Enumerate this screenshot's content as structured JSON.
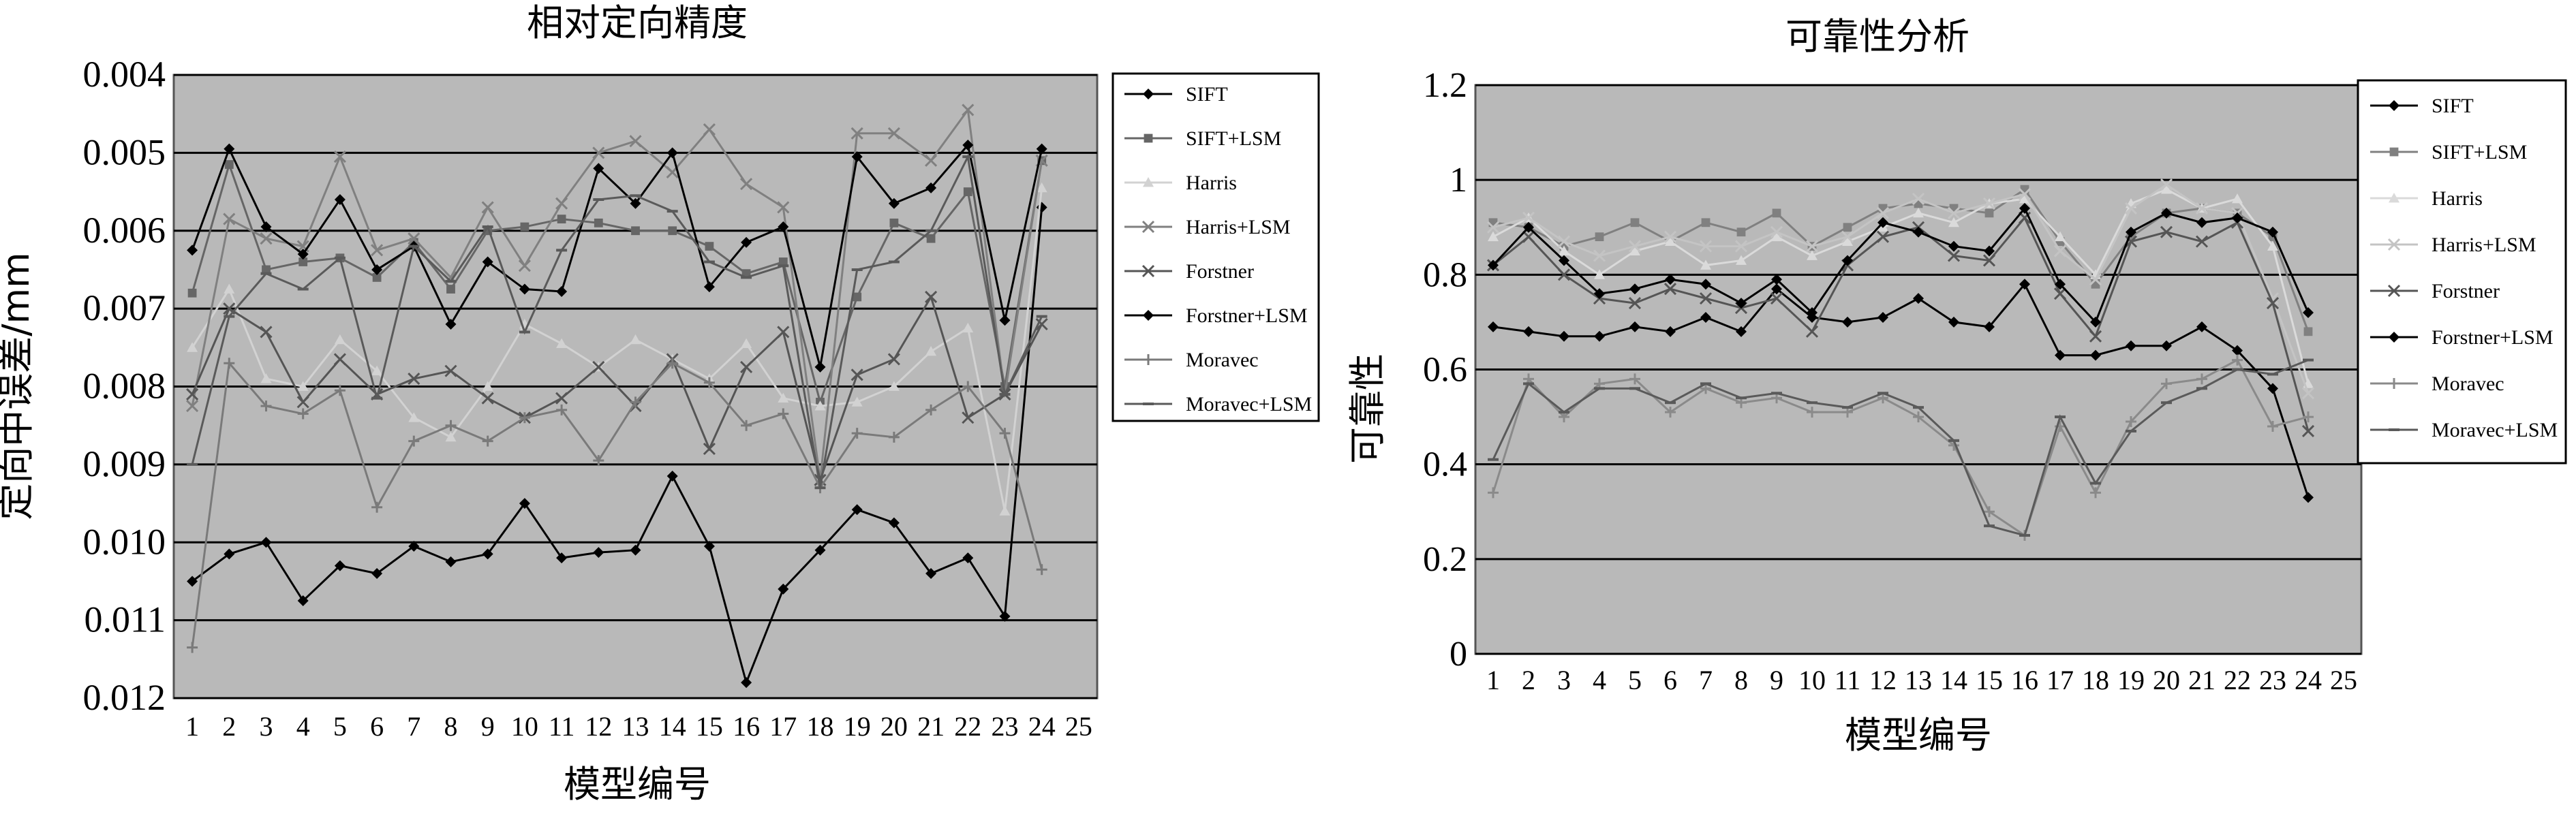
{
  "chart_data": [
    {
      "type": "line",
      "title": "相对定向精度",
      "xlabel": "模型编号",
      "ylabel": "定向中误差/mm",
      "x": [
        1,
        2,
        3,
        4,
        5,
        6,
        7,
        8,
        9,
        10,
        11,
        12,
        13,
        14,
        15,
        16,
        17,
        18,
        19,
        20,
        21,
        22,
        23,
        24
      ],
      "x_ticks": [
        "1",
        "2",
        "3",
        "4",
        "5",
        "6",
        "7",
        "8",
        "9",
        "10",
        "11",
        "12",
        "13",
        "14",
        "15",
        "16",
        "17",
        "18",
        "19",
        "20",
        "21",
        "22",
        "23",
        "24",
        "25"
      ],
      "xlim": [
        0.5,
        25.5
      ],
      "ylim": [
        0.004,
        0.012
      ],
      "y_inverted": true,
      "y_ticks": [
        "0.004",
        "0.005",
        "0.006",
        "0.007",
        "0.008",
        "0.009",
        "0.010",
        "0.011",
        "0.012"
      ],
      "grid": "horizontal",
      "legend_position": "right",
      "series": [
        {
          "name": "SIFT",
          "color": "#000000",
          "marker": "diamond",
          "values": [
            0.0105,
            0.01015,
            0.01,
            0.01075,
            0.0103,
            0.0104,
            0.01005,
            0.01025,
            0.01015,
            0.0095,
            0.0102,
            0.01013,
            0.0101,
            0.00915,
            0.01005,
            0.0118,
            0.0106,
            0.0101,
            0.00958,
            0.00975,
            0.0104,
            0.0102,
            0.01095,
            0.0057
          ]
        },
        {
          "name": "SIFT+LSM",
          "color": "#666666",
          "marker": "square",
          "values": [
            0.0068,
            0.00515,
            0.0065,
            0.0064,
            0.00635,
            0.0066,
            0.00615,
            0.00675,
            0.006,
            0.00595,
            0.00585,
            0.0059,
            0.006,
            0.006,
            0.0062,
            0.00655,
            0.0064,
            0.0082,
            0.00685,
            0.0059,
            0.0061,
            0.0055,
            0.008,
            0.0051
          ]
        },
        {
          "name": "Harris",
          "color": "#d2d2d2",
          "marker": "triangle",
          "values": [
            0.0075,
            0.00675,
            0.0079,
            0.008,
            0.0074,
            0.0078,
            0.0084,
            0.00865,
            0.008,
            0.0072,
            0.00745,
            0.00775,
            0.0074,
            0.00765,
            0.0079,
            0.00745,
            0.00815,
            0.00825,
            0.0082,
            0.008,
            0.00755,
            0.00725,
            0.0096,
            0.00545
          ]
        },
        {
          "name": "Harris+LSM",
          "color": "#808080",
          "marker": "x",
          "values": [
            0.00825,
            0.00585,
            0.0061,
            0.0062,
            0.00505,
            0.00625,
            0.0061,
            0.0066,
            0.0057,
            0.00645,
            0.00565,
            0.005,
            0.00485,
            0.00525,
            0.0047,
            0.0054,
            0.0057,
            0.0092,
            0.00475,
            0.00475,
            0.0051,
            0.00445,
            0.0081,
            0.0051
          ]
        },
        {
          "name": "Forstner",
          "color": "#555555",
          "marker": "x",
          "values": [
            0.0081,
            0.007,
            0.0073,
            0.0082,
            0.00765,
            0.0081,
            0.0079,
            0.0078,
            0.00815,
            0.0084,
            0.00815,
            0.00775,
            0.00825,
            0.00765,
            0.0088,
            0.00775,
            0.0073,
            0.0092,
            0.00785,
            0.00765,
            0.00685,
            0.0084,
            0.0081,
            0.0072
          ]
        },
        {
          "name": "Forstner+LSM",
          "color": "#000000",
          "marker": "diamond",
          "values": [
            0.00625,
            0.00495,
            0.00595,
            0.0063,
            0.0056,
            0.0065,
            0.0062,
            0.0072,
            0.0064,
            0.00675,
            0.00678,
            0.0052,
            0.00565,
            0.005,
            0.00672,
            0.00615,
            0.00595,
            0.00775,
            0.00505,
            0.00565,
            0.00545,
            0.0049,
            0.00715,
            0.00495
          ]
        },
        {
          "name": "Moravec",
          "color": "#7a7a7a",
          "marker": "plus",
          "values": [
            0.01135,
            0.0077,
            0.00825,
            0.00835,
            0.00805,
            0.00955,
            0.0087,
            0.0085,
            0.0087,
            0.0084,
            0.0083,
            0.00895,
            0.0082,
            0.0077,
            0.00795,
            0.0085,
            0.00835,
            0.0093,
            0.0086,
            0.00865,
            0.0083,
            0.008,
            0.0086,
            0.01035
          ]
        },
        {
          "name": "Moravec+LSM",
          "color": "#5a5a5a",
          "marker": "minus",
          "values": [
            0.009,
            0.0071,
            0.00655,
            0.00675,
            0.00635,
            0.00815,
            0.0062,
            0.00665,
            0.00595,
            0.0073,
            0.00625,
            0.0056,
            0.00555,
            0.00575,
            0.0064,
            0.0066,
            0.00645,
            0.0093,
            0.0065,
            0.0064,
            0.006,
            0.00505,
            0.0081,
            0.0071
          ]
        }
      ]
    },
    {
      "type": "line",
      "title": "可靠性分析",
      "xlabel": "模型编号",
      "ylabel": "可靠性",
      "x": [
        1,
        2,
        3,
        4,
        5,
        6,
        7,
        8,
        9,
        10,
        11,
        12,
        13,
        14,
        15,
        16,
        17,
        18,
        19,
        20,
        21,
        22,
        23,
        24
      ],
      "x_ticks": [
        "1",
        "2",
        "3",
        "4",
        "5",
        "6",
        "7",
        "8",
        "9",
        "10",
        "11",
        "12",
        "13",
        "14",
        "15",
        "16",
        "17",
        "18",
        "19",
        "20",
        "21",
        "22",
        "23",
        "24",
        "25"
      ],
      "xlim": [
        0.5,
        25.5
      ],
      "ylim": [
        0,
        1.2
      ],
      "y_ticks": [
        "0",
        "0.2",
        "0.4",
        "0.6",
        "0.8",
        "1",
        "1.2"
      ],
      "grid": "horizontal",
      "legend_position": "right",
      "series": [
        {
          "name": "SIFT",
          "color": "#000000",
          "marker": "diamond",
          "values": [
            0.69,
            0.68,
            0.67,
            0.67,
            0.69,
            0.68,
            0.71,
            0.68,
            0.77,
            0.71,
            0.7,
            0.71,
            0.75,
            0.7,
            0.69,
            0.78,
            0.63,
            0.63,
            0.65,
            0.65,
            0.69,
            0.64,
            0.56,
            0.33
          ]
        },
        {
          "name": "SIFT+LSM",
          "color": "#808080",
          "marker": "square",
          "values": [
            0.91,
            0.9,
            0.86,
            0.88,
            0.91,
            0.87,
            0.91,
            0.89,
            0.93,
            0.86,
            0.9,
            0.94,
            0.95,
            0.94,
            0.93,
            0.98,
            0.87,
            0.78,
            0.88,
            0.93,
            0.94,
            0.93,
            0.88,
            0.68
          ]
        },
        {
          "name": "Harris",
          "color": "#dadada",
          "marker": "triangle",
          "values": [
            0.88,
            0.92,
            0.85,
            0.8,
            0.85,
            0.87,
            0.82,
            0.83,
            0.88,
            0.84,
            0.87,
            0.9,
            0.93,
            0.91,
            0.95,
            0.96,
            0.88,
            0.8,
            0.95,
            0.98,
            0.94,
            0.96,
            0.86,
            0.57
          ]
        },
        {
          "name": "Harris+LSM",
          "color": "#c4c4c4",
          "marker": "x",
          "values": [
            0.9,
            0.92,
            0.87,
            0.84,
            0.86,
            0.88,
            0.86,
            0.86,
            0.89,
            0.86,
            0.88,
            0.93,
            0.96,
            0.93,
            0.95,
            0.97,
            0.85,
            0.79,
            0.94,
            0.99,
            0.94,
            0.93,
            0.75,
            0.55
          ]
        },
        {
          "name": "Forstner",
          "color": "#555555",
          "marker": "x",
          "values": [
            0.82,
            0.88,
            0.8,
            0.75,
            0.74,
            0.77,
            0.75,
            0.73,
            0.75,
            0.68,
            0.82,
            0.88,
            0.9,
            0.84,
            0.83,
            0.92,
            0.76,
            0.67,
            0.87,
            0.89,
            0.87,
            0.91,
            0.74,
            0.47
          ]
        },
        {
          "name": "Forstner+LSM",
          "color": "#000000",
          "marker": "diamond",
          "values": [
            0.82,
            0.9,
            0.83,
            0.76,
            0.77,
            0.79,
            0.78,
            0.74,
            0.79,
            0.72,
            0.83,
            0.91,
            0.89,
            0.86,
            0.85,
            0.94,
            0.78,
            0.7,
            0.89,
            0.93,
            0.91,
            0.92,
            0.89,
            0.72
          ]
        },
        {
          "name": "Moravec",
          "color": "#8a8a8a",
          "marker": "plus",
          "values": [
            0.34,
            0.58,
            0.5,
            0.57,
            0.58,
            0.51,
            0.56,
            0.53,
            0.54,
            0.51,
            0.51,
            0.54,
            0.5,
            0.44,
            0.3,
            0.25,
            0.48,
            0.34,
            0.49,
            0.57,
            0.58,
            0.62,
            0.48,
            0.5
          ]
        },
        {
          "name": "Moravec+LSM",
          "color": "#5a5a5a",
          "marker": "minus",
          "values": [
            0.41,
            0.57,
            0.51,
            0.56,
            0.56,
            0.53,
            0.57,
            0.54,
            0.55,
            0.53,
            0.52,
            0.55,
            0.52,
            0.45,
            0.27,
            0.25,
            0.5,
            0.36,
            0.47,
            0.53,
            0.56,
            0.6,
            0.59,
            0.62
          ]
        }
      ]
    }
  ]
}
